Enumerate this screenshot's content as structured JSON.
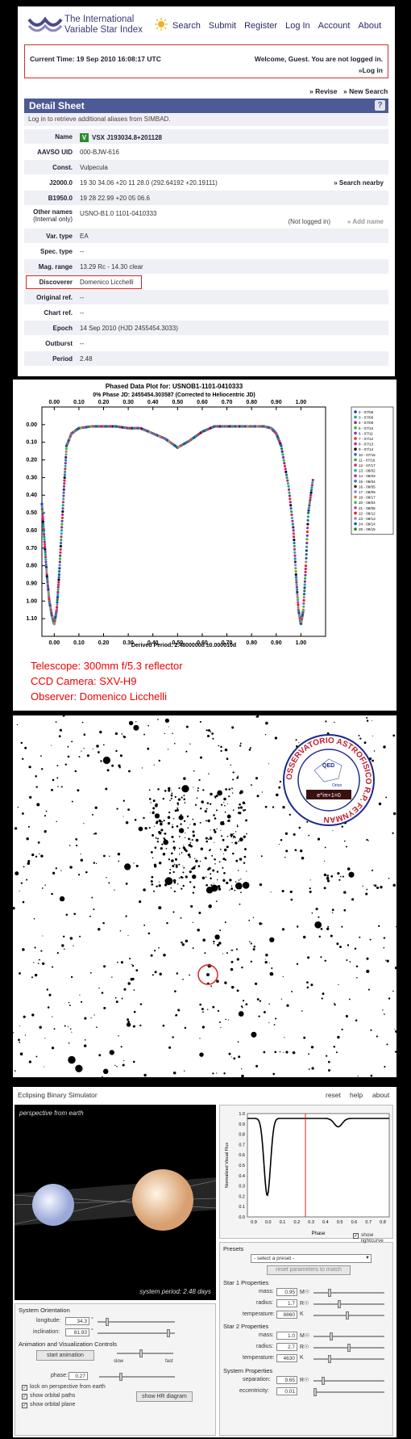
{
  "site": {
    "title_line1": "The International",
    "title_line2": "Variable Star Index"
  },
  "nav": [
    "Search",
    "Submit",
    "Register",
    "Log In",
    "Account",
    "About"
  ],
  "status": {
    "current_time": "Current Time: 19 Sep 2010 16:08:17 UTC",
    "welcome": "Welcome, Guest. You are not logged in.",
    "login": "»Log in"
  },
  "actions": {
    "revise": "» Revise",
    "new_search": "» New Search"
  },
  "detail": {
    "header": "Detail Sheet",
    "help": "?",
    "simbad_note": "Log in to retrieve additional aliases from SIMBAD.",
    "rows": [
      {
        "label": "Name",
        "value": "VSX J193034.8+201128",
        "badge": "V"
      },
      {
        "label": "AAVSO UID",
        "value": "000-BJW-616"
      },
      {
        "label": "Const.",
        "value": "Vulpecula"
      },
      {
        "label": "J2000.0",
        "value": "19 30 34.06 +20 11 28.0  (292.64192 +20.19111)",
        "link": "» Search nearby"
      },
      {
        "label": "B1950.0",
        "value": "19 28 22.99 +20 05 06.6"
      },
      {
        "label": "Other names",
        "sublabel": "(Internal only)",
        "value": "USNO-B1.0 1101-0410333",
        "note": "(Not logged in)",
        "link": "» Add name"
      },
      {
        "label": "Var. type",
        "value": "EA"
      },
      {
        "label": "Spec. type",
        "value": "--"
      },
      {
        "label": "Mag. range",
        "value": "13.29 Rc - 14.30 clear"
      },
      {
        "label": "Discoverer",
        "value": "Domenico Licchelli"
      },
      {
        "label": "Original ref.",
        "value": "--"
      },
      {
        "label": "Chart ref.",
        "value": "--"
      },
      {
        "label": "Epoch",
        "value": "14 Sep 2010 (HJD 2455454.3033)"
      },
      {
        "label": "Outburst",
        "value": "--"
      },
      {
        "label": "Period",
        "value": "2.48"
      }
    ]
  },
  "phased_plot": {
    "title": "Phased Data Plot for:  USNOB1-1101-0410333",
    "subtitle": "0% Phase JD:  2455454.303587   (Corrected to Heliocentric JD)",
    "footer": "Derived Period:  2.4800000d   ±0.000010d",
    "top_ticks": [
      "0.00",
      "0.10",
      "0.20",
      "0.30",
      "0.40",
      "0.50",
      "0.60",
      "0.70",
      "0.80",
      "0.90",
      "1.00"
    ],
    "bottom_ticks": [
      "0.00",
      "0.10",
      "0.20",
      "0.30",
      "0.40",
      "0.50",
      "0.60",
      "0.70",
      "0.80",
      "0.90",
      "1.00"
    ],
    "y_ticks": [
      "0.00",
      "0.10",
      "0.20",
      "0.30",
      "0.40",
      "0.50",
      "0.60",
      "0.70",
      "0.80",
      "0.90",
      "1.00",
      "1.10"
    ],
    "legend": [
      {
        "label": "2 - 07/06",
        "color": "#2030c0"
      },
      {
        "label": "3 - 07/06",
        "color": "#20a0a0"
      },
      {
        "label": "4 - 07/09",
        "color": "#a020a0"
      },
      {
        "label": "5 - 07/10",
        "color": "#20c020"
      },
      {
        "label": "6 - 07/11",
        "color": "#8030c0"
      },
      {
        "label": "7 - 07/12",
        "color": "#e03020"
      },
      {
        "label": "8 - 07/13",
        "color": "#c02080"
      },
      {
        "label": "9 - 07/14",
        "color": "#101010"
      },
      {
        "label": "10 - 07/15",
        "color": "#3060e0"
      },
      {
        "label": "11 - 07/16",
        "color": "#30a060"
      },
      {
        "label": "12 - 07/17",
        "color": "#c03060"
      },
      {
        "label": "13 - 08/02",
        "color": "#20b0b0"
      },
      {
        "label": "14 - 08/03",
        "color": "#a03090"
      },
      {
        "label": "15 - 08/04",
        "color": "#2080c0"
      },
      {
        "label": "16 - 08/05",
        "color": "#303030"
      },
      {
        "label": "17 - 08/09",
        "color": "#8080ff"
      },
      {
        "label": "19 - 09/17",
        "color": "#c08040"
      },
      {
        "label": "20 - 09/04",
        "color": "#40c040"
      },
      {
        "label": "21 - 09/05",
        "color": "#c040c0"
      },
      {
        "label": "22 - 09/12",
        "color": "#e02020"
      },
      {
        "label": "23 - 09/13",
        "color": "#909090"
      },
      {
        "label": "24 - 09/14",
        "color": "#0060c0"
      },
      {
        "label": "25 - 09/15",
        "color": "#208020"
      }
    ],
    "telescope": "Telescope: 300mm f/5.3 reflector",
    "camera": "CCD Camera: SXV-H9",
    "observer": "Observer: Domenico Licchelli"
  },
  "chart_data": {
    "type": "scatter",
    "title": "Phased Data Plot for:  USNOB1-1101-0410333",
    "xlabel": "Derived Period:  2.4800000d   ±0.000010d",
    "ylabel": "",
    "xlim": [
      -0.05,
      1.1
    ],
    "ylim": [
      1.2,
      -0.1
    ],
    "x": [
      -0.05,
      -0.04,
      -0.03,
      -0.02,
      -0.01,
      0.0,
      0.01,
      0.02,
      0.03,
      0.04,
      0.05,
      0.07,
      0.1,
      0.15,
      0.2,
      0.25,
      0.3,
      0.35,
      0.4,
      0.45,
      0.5,
      0.55,
      0.6,
      0.65,
      0.7,
      0.75,
      0.8,
      0.85,
      0.88,
      0.9,
      0.92,
      0.95,
      0.97,
      0.98,
      0.99,
      1.0,
      1.01,
      1.02,
      1.03,
      1.05
    ],
    "y": [
      0.45,
      0.65,
      0.85,
      1.0,
      1.08,
      1.13,
      1.05,
      0.85,
      0.6,
      0.35,
      0.12,
      0.05,
      0.02,
      0.01,
      0.01,
      0.01,
      0.02,
      0.02,
      0.05,
      0.08,
      0.13,
      0.09,
      0.04,
      0.01,
      0.01,
      0.01,
      0.01,
      0.01,
      0.02,
      0.05,
      0.12,
      0.35,
      0.6,
      0.85,
      1.05,
      1.13,
      1.05,
      0.8,
      0.5,
      0.3
    ]
  },
  "seal": {
    "ring_text": "OSSERVATORIO ASTROFISICO R.P. FEYNMAN",
    "center": "QED",
    "sub": "Orion",
    "formula": "e^iπ+1=0"
  },
  "simulator": {
    "title": "Eclipsing Binary Simulator",
    "menu": [
      "reset",
      "help",
      "about"
    ],
    "view_label": "perspective from earth",
    "period_label": "system period: 2.48 days",
    "lc": {
      "ylabel": "Normalized Visual Flux",
      "xlabel": "Phase",
      "y_ticks": [
        "1.0",
        "0.9",
        "0.8",
        "0.7",
        "0.6",
        "0.5",
        "0.4",
        "0.3",
        "0.2",
        "0.1",
        "0.0"
      ],
      "x_ticks": [
        "0.9",
        "0.0",
        "0.1",
        "0.2",
        "0.3",
        "0.4",
        "0.5",
        "0.6",
        "0.7",
        "0.8"
      ]
    },
    "orientation": {
      "title": "System Orientation",
      "longitude_label": "longitude:",
      "longitude": "34.3",
      "inclination_label": "inclination:",
      "inclination": "81.93",
      "unit": "°"
    },
    "animation": {
      "title": "Animation and Visualization Controls",
      "start": "start animation",
      "slow": "slow",
      "fast": "fast",
      "phase_label": "phase:",
      "phase": "0.27",
      "checks": [
        "lock on perspective from earth",
        "show orbital paths",
        "show orbital plane"
      ],
      "hr_button": "show HR diagram"
    },
    "presets": {
      "title": "Presets",
      "select": "- select a preset -",
      "reset_btn": "reset parameters to match",
      "show_lc": "show lightcurve"
    },
    "star1": {
      "title": "Star 1 Properties",
      "mass_label": "mass:",
      "mass": "0.95",
      "mass_unit": "M☉",
      "radius_label": "radius:",
      "radius": "1.7",
      "radius_unit": "R☉",
      "temp_label": "temperature:",
      "temp": "8860",
      "temp_unit": "K"
    },
    "star2": {
      "title": "Star 2 Properties",
      "mass_label": "mass:",
      "mass": "1.0",
      "mass_unit": "M☉",
      "radius_label": "radius:",
      "radius": "2.7",
      "radius_unit": "R☉",
      "temp_label": "temperature:",
      "temp": "4630",
      "temp_unit": "K"
    },
    "system": {
      "title": "System Properties",
      "sep_label": "separation:",
      "sep": "9.65",
      "sep_unit": "R☉",
      "ecc_label": "eccentricity:",
      "ecc": "0.01"
    }
  }
}
